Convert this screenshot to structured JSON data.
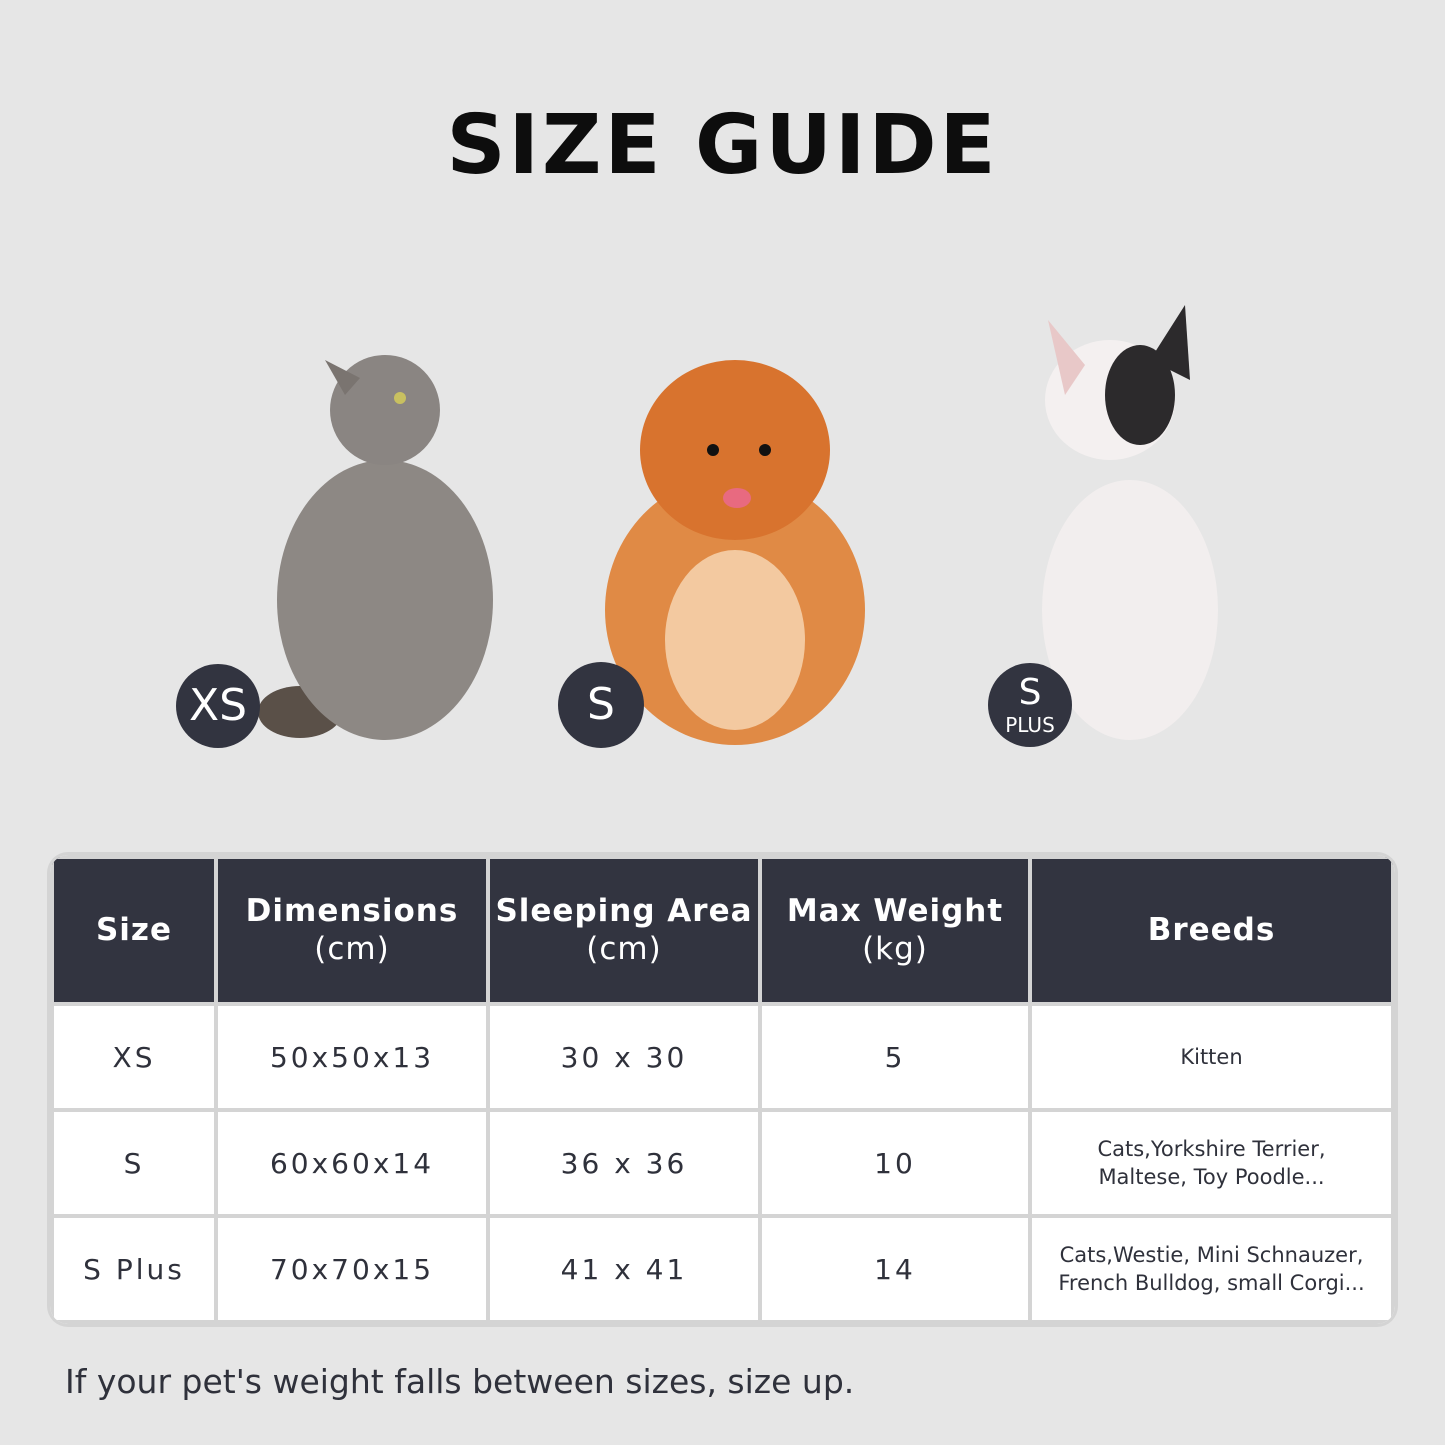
{
  "title": "SIZE GUIDE",
  "colors": {
    "background": "#e6e6e6",
    "dark": "#323440",
    "border": "#d4d4d4"
  },
  "pets": [
    {
      "badge": "XS",
      "badge_sub": "",
      "animal": "gray-cat"
    },
    {
      "badge": "S",
      "badge_sub": "",
      "animal": "pomeranian"
    },
    {
      "badge": "S",
      "badge_sub": "PLUS",
      "animal": "french-bulldog"
    }
  ],
  "table": {
    "headers": [
      {
        "label": "Size",
        "unit": ""
      },
      {
        "label": "Dimensions",
        "unit": "(cm)"
      },
      {
        "label": "Sleeping Area",
        "unit": "(cm)"
      },
      {
        "label": "Max Weight",
        "unit": "(kg)"
      },
      {
        "label": "Breeds",
        "unit": ""
      }
    ],
    "rows": [
      {
        "size": "XS",
        "dimensions": "50x50x13",
        "sleeping_area": "30 x 30",
        "max_weight": "5",
        "breeds_1": "Kitten",
        "breeds_2": ""
      },
      {
        "size": "S",
        "dimensions": "60x60x14",
        "sleeping_area": "36 x 36",
        "max_weight": "10",
        "breeds_1": "Cats,Yorkshire Terrier,",
        "breeds_2": "Maltese, Toy Poodle..."
      },
      {
        "size": "S Plus",
        "dimensions": "70x70x15",
        "sleeping_area": "41 x 41",
        "max_weight": "14",
        "breeds_1": "Cats,Westie, Mini Schnauzer,",
        "breeds_2": "French Bulldog, small Corgi..."
      }
    ]
  },
  "note": "If your pet's weight falls between sizes, size up."
}
